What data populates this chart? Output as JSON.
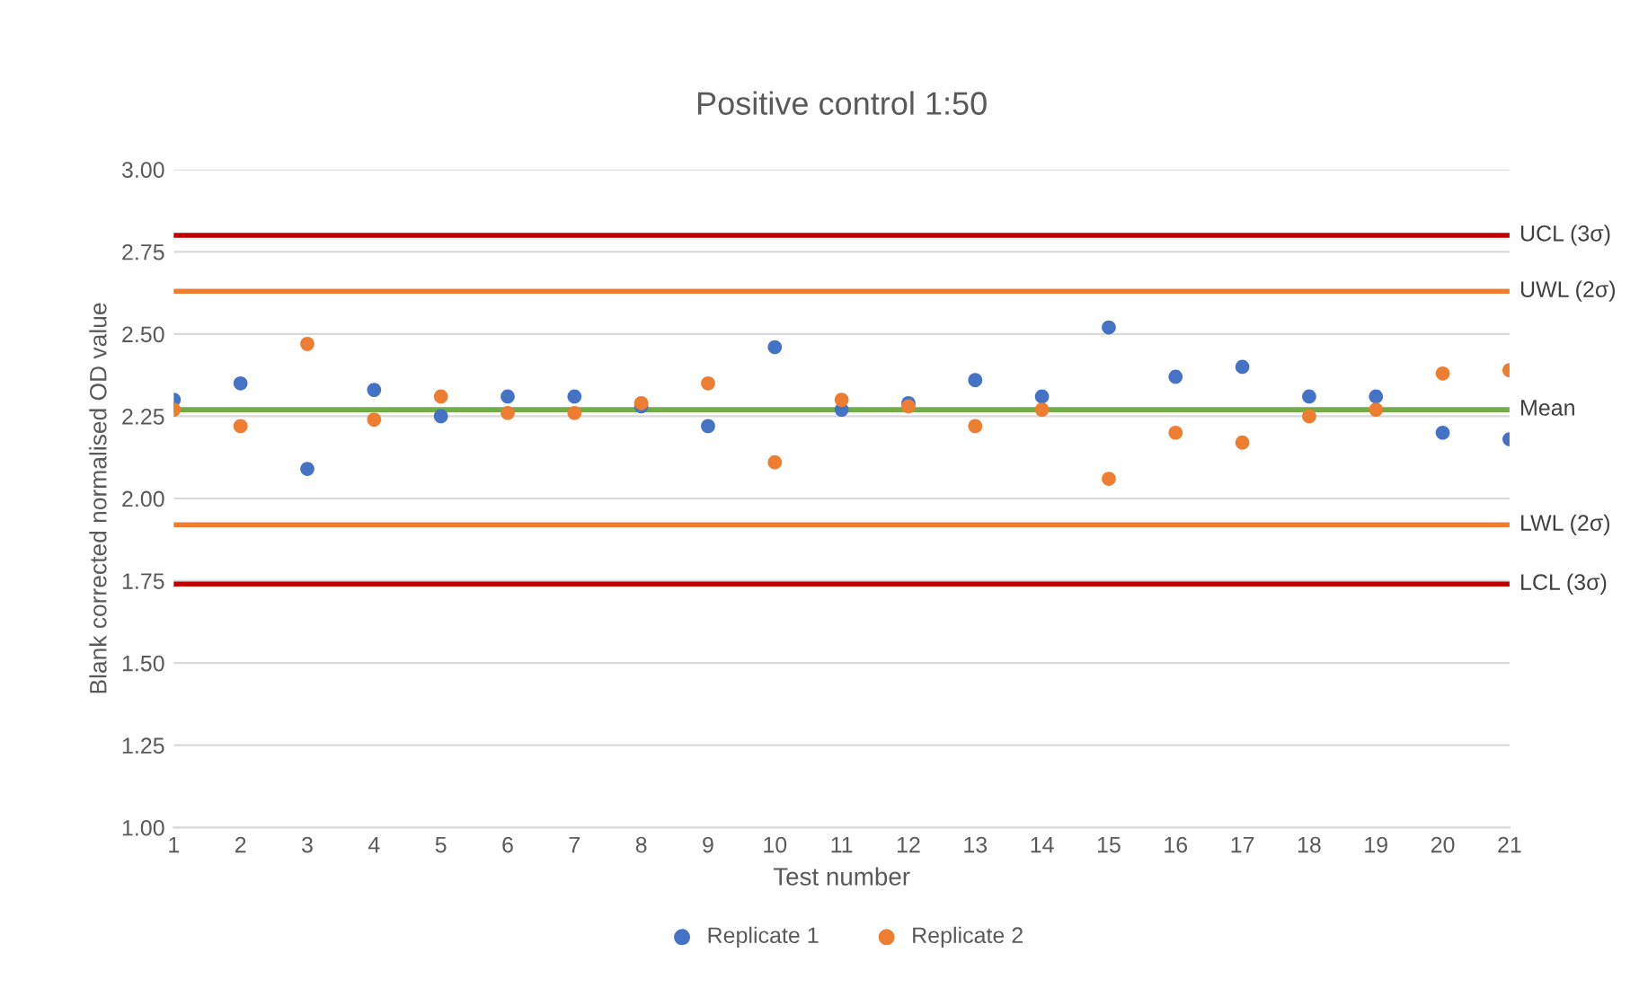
{
  "chart_data": {
    "type": "scatter",
    "title": "Positive control 1:50",
    "xlabel": "Test number",
    "ylabel": "Blank corrected normalised OD value",
    "x": [
      1,
      2,
      3,
      4,
      5,
      6,
      7,
      8,
      9,
      10,
      11,
      12,
      13,
      14,
      15,
      16,
      17,
      18,
      19,
      20,
      21
    ],
    "series": [
      {
        "name": "Replicate 1",
        "color": "#4472c4",
        "values": [
          2.3,
          2.35,
          2.09,
          2.33,
          2.25,
          2.31,
          2.31,
          2.28,
          2.22,
          2.46,
          2.27,
          2.29,
          2.36,
          2.31,
          2.52,
          2.37,
          2.4,
          2.31,
          2.31,
          2.2,
          2.18
        ]
      },
      {
        "name": "Replicate 2",
        "color": "#ed7d31",
        "values": [
          2.27,
          2.22,
          2.47,
          2.24,
          2.31,
          2.26,
          2.26,
          2.29,
          2.35,
          2.11,
          2.3,
          2.28,
          2.22,
          2.27,
          2.06,
          2.2,
          2.17,
          2.25,
          2.27,
          2.38,
          2.39
        ]
      }
    ],
    "ref_lines": [
      {
        "axis": "y",
        "value": 2.8,
        "label": "UCL (3σ)",
        "color": "#c00000"
      },
      {
        "axis": "y",
        "value": 2.63,
        "label": "UWL (2σ)",
        "color": "#ed7d31"
      },
      {
        "axis": "y",
        "value": 2.27,
        "label": "Mean",
        "color": "#70ad47"
      },
      {
        "axis": "y",
        "value": 1.92,
        "label": "LWL (2σ)",
        "color": "#ed7d31"
      },
      {
        "axis": "y",
        "value": 1.74,
        "label": "LCL (3σ)",
        "color": "#c00000"
      }
    ],
    "xlim": [
      1,
      21
    ],
    "xticks": [
      1,
      2,
      3,
      4,
      5,
      6,
      7,
      8,
      9,
      10,
      11,
      12,
      13,
      14,
      15,
      16,
      17,
      18,
      19,
      20,
      21
    ],
    "ylim": [
      1.0,
      3.0
    ],
    "yticks": [
      {
        "value": 1.0,
        "label": "1.00"
      },
      {
        "value": 1.25,
        "label": "1.25"
      },
      {
        "value": 1.5,
        "label": "1.50"
      },
      {
        "value": 1.75,
        "label": "1.75"
      },
      {
        "value": 2.0,
        "label": "2.00"
      },
      {
        "value": 2.25,
        "label": "2.25"
      },
      {
        "value": 2.5,
        "label": "2.50"
      },
      {
        "value": 2.75,
        "label": "2.75"
      },
      {
        "value": 3.0,
        "label": "3.00"
      }
    ],
    "grid": "y",
    "legend": "bottom",
    "marker": "circle"
  }
}
